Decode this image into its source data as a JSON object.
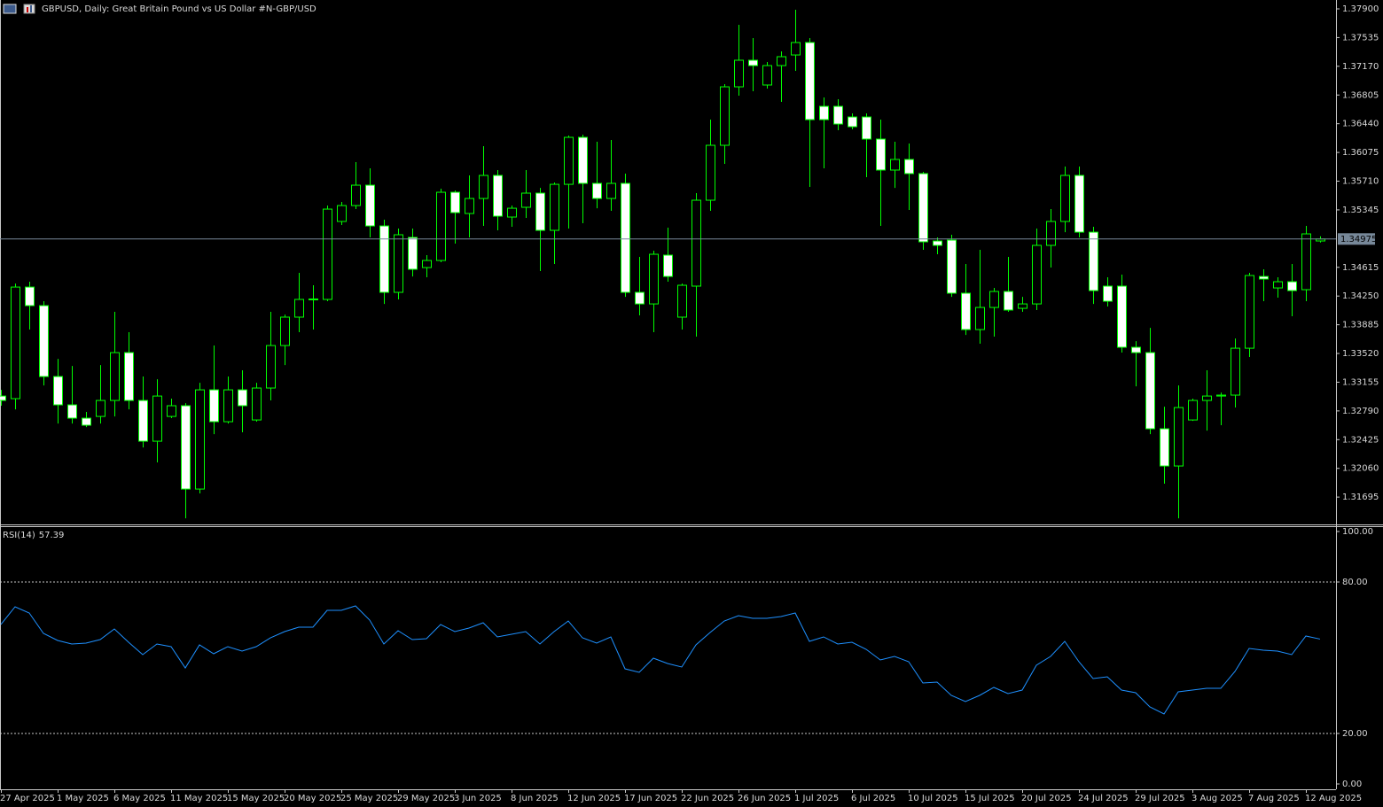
{
  "chart_data": [
    {
      "type": "candlestick",
      "title": "GBPUSD, Daily:  Great Britain Pound vs US Dollar #N-GBP/USD",
      "categories": [
        "27 Apr 2025",
        null,
        null,
        null,
        "1 May 2025",
        null,
        null,
        null,
        "6 May 2025",
        null,
        null,
        null,
        "11 May 2025",
        null,
        null,
        null,
        "15 May 2025",
        null,
        null,
        null,
        "20 May 2025",
        null,
        null,
        null,
        "25 May 2025",
        null,
        null,
        null,
        "29 May 2025",
        null,
        null,
        null,
        "3 Jun 2025",
        null,
        null,
        null,
        "8 Jun 2025",
        null,
        null,
        null,
        "12 Jun 2025",
        null,
        null,
        null,
        "17 Jun 2025",
        null,
        null,
        null,
        "22 Jun 2025",
        null,
        null,
        null,
        "26 Jun 2025",
        null,
        null,
        null,
        "1 Jul 2025",
        null,
        null,
        null,
        "6 Jul 2025",
        null,
        null,
        null,
        "10 Jul 2025",
        null,
        null,
        null,
        "15 Jul 2025",
        null,
        null,
        null,
        "20 Jul 2025",
        null,
        null,
        null,
        "24 Jul 2025",
        null,
        null,
        null,
        "29 Jul 2025",
        null,
        null,
        null,
        "3 Aug 2025",
        null,
        null,
        null,
        "7 Aug 2025",
        null,
        null,
        null,
        "12 Aug 2025",
        null
      ],
      "open": [
        1.32979,
        1.32946,
        1.34364,
        1.34128,
        1.33227,
        1.32867,
        1.32698,
        1.3272,
        1.32923,
        1.33531,
        1.32923,
        1.32405,
        1.3272,
        1.32856,
        1.31797,
        1.33058,
        1.32653,
        1.33058,
        1.32675,
        1.33081,
        1.33621,
        1.33982,
        1.34207,
        1.34207,
        1.35198,
        1.354,
        1.35659,
        1.35141,
        1.34297,
        1.34995,
        1.34612,
        1.34702,
        1.35569,
        1.35299,
        1.3549,
        1.35783,
        1.35254,
        1.35378,
        1.35558,
        1.35085,
        1.3567,
        1.36267,
        1.35682,
        1.3549,
        1.35682,
        1.34297,
        1.3415,
        1.3477,
        1.33982,
        1.34376,
        1.35468,
        1.36166,
        1.36909,
        1.37247,
        1.36932,
        1.37179,
        1.37314,
        1.37472,
        1.36661,
        1.36661,
        1.36526,
        1.36526,
        1.36245,
        1.35851,
        1.35986,
        1.35806,
        1.3495,
        1.34961,
        1.34286,
        1.33824,
        1.34105,
        1.34308,
        1.34094,
        1.3415,
        1.34894,
        1.35198,
        1.35783,
        1.35062,
        1.34376,
        1.34376,
        1.33599,
        1.33531,
        1.32563,
        1.3209,
        1.32675,
        1.32923,
        1.32979,
        1.32991,
        1.33587,
        1.34499,
        1.34353,
        1.34432,
        1.34331,
        1.3495
      ],
      "high": [
        1.33058,
        1.34409,
        1.34432,
        1.34184,
        1.33452,
        1.33362,
        1.32777,
        1.33373,
        1.34049,
        1.3379,
        1.33227,
        1.33193,
        1.32946,
        1.32889,
        1.33148,
        1.33621,
        1.33227,
        1.33306,
        1.33148,
        1.34049,
        1.34015,
        1.34545,
        1.34387,
        1.354,
        1.35445,
        1.35952,
        1.35873,
        1.3522,
        1.35108,
        1.35108,
        1.3477,
        1.35614,
        1.35592,
        1.35783,
        1.36155,
        1.35851,
        1.354,
        1.35851,
        1.35625,
        1.35693,
        1.3629,
        1.36301,
        1.36211,
        1.36234,
        1.35806,
        1.34747,
        1.34826,
        1.35119,
        1.34409,
        1.35558,
        1.36492,
        1.36943,
        1.37697,
        1.37528,
        1.37224,
        1.3736,
        1.37889,
        1.37528,
        1.36774,
        1.36751,
        1.36571,
        1.36571,
        1.36492,
        1.36211,
        1.36188,
        1.35828,
        1.34995,
        1.35029,
        1.34657,
        1.34837,
        1.34353,
        1.34747,
        1.3424,
        1.35108,
        1.35355,
        1.35896,
        1.35896,
        1.3513,
        1.34488,
        1.34522,
        1.33677,
        1.33846,
        1.32844,
        1.33114,
        1.32946,
        1.33306,
        1.33024,
        1.33711,
        1.34545,
        1.3459,
        1.34488,
        1.34657,
        1.35141,
        1.3501
      ],
      "low": [
        1.32856,
        1.3281,
        1.33824,
        1.33114,
        1.3263,
        1.3263,
        1.32585,
        1.3263,
        1.3272,
        1.3281,
        1.32326,
        1.32135,
        1.32698,
        1.31425,
        1.31741,
        1.32495,
        1.3263,
        1.32518,
        1.32653,
        1.32923,
        1.33373,
        1.3379,
        1.33824,
        1.34184,
        1.35153,
        1.35355,
        1.34995,
        1.3415,
        1.34207,
        1.34499,
        1.34488,
        1.3468,
        1.34916,
        1.34995,
        1.35141,
        1.35085,
        1.3513,
        1.35243,
        1.34567,
        1.34657,
        1.35108,
        1.35175,
        1.35366,
        1.35333,
        1.3424,
        1.34004,
        1.3379,
        1.34432,
        1.33824,
        1.33734,
        1.35333,
        1.35929,
        1.36797,
        1.36853,
        1.36887,
        1.36718,
        1.37112,
        1.35637,
        1.35873,
        1.36357,
        1.36369,
        1.35761,
        1.35141,
        1.35625,
        1.35344,
        1.34837,
        1.34781,
        1.3424,
        1.33756,
        1.33644,
        1.33734,
        1.34049,
        1.34049,
        1.34072,
        1.34612,
        1.35062,
        1.34995,
        1.3415,
        1.34117,
        1.33531,
        1.33103,
        1.32495,
        1.31865,
        1.31425,
        1.32664,
        1.3254,
        1.32608,
        1.32833,
        1.33475,
        1.34184,
        1.34229,
        1.33993,
        1.34184,
        1.3493
      ],
      "close": [
        1.32923,
        1.34364,
        1.34128,
        1.33227,
        1.32867,
        1.32698,
        1.32608,
        1.32923,
        1.33531,
        1.32923,
        1.32405,
        1.32979,
        1.32856,
        1.31797,
        1.33058,
        1.32653,
        1.33058,
        1.32856,
        1.33081,
        1.33621,
        1.33982,
        1.34207,
        1.34213,
        1.35355,
        1.354,
        1.35659,
        1.35141,
        1.34297,
        1.35029,
        1.3459,
        1.34702,
        1.35569,
        1.3531,
        1.3549,
        1.35783,
        1.35265,
        1.35366,
        1.35558,
        1.35085,
        1.3567,
        1.36267,
        1.35682,
        1.3549,
        1.35682,
        1.34297,
        1.3415,
        1.34781,
        1.34499,
        1.34387,
        1.35468,
        1.36166,
        1.36909,
        1.37247,
        1.37179,
        1.37179,
        1.37292,
        1.37472,
        1.36492,
        1.36492,
        1.36436,
        1.36402,
        1.36245,
        1.35851,
        1.35986,
        1.35806,
        1.34939,
        1.34894,
        1.34286,
        1.33824,
        1.34105,
        1.34308,
        1.34072,
        1.3415,
        1.34894,
        1.35198,
        1.35783,
        1.35062,
        1.34319,
        1.34184,
        1.33599,
        1.33531,
        1.32563,
        1.3209,
        1.32833,
        1.32923,
        1.32979,
        1.32991,
        1.33587,
        1.34511,
        1.34466,
        1.34432,
        1.34319,
        1.3504,
        1.34975
      ],
      "up_color": "#000000",
      "down_color": "#ffffff",
      "wick_color": "#00ff00",
      "last_price_color": "#778899",
      "ylim": [
        1.3137,
        1.3799
      ],
      "yticks": [
        {
          "value": 1.379,
          "label": "1.37900"
        },
        {
          "value": 1.37535,
          "label": "1.37535"
        },
        {
          "value": 1.3717,
          "label": "1.37170"
        },
        {
          "value": 1.36805,
          "label": "1.36805"
        },
        {
          "value": 1.3644,
          "label": "1.36440"
        },
        {
          "value": 1.36075,
          "label": "1.36075"
        },
        {
          "value": 1.3571,
          "label": "1.35710"
        },
        {
          "value": 1.35345,
          "label": "1.35345"
        },
        {
          "value": 1.34615,
          "label": "1.34615"
        },
        {
          "value": 1.3425,
          "label": "1.34250"
        },
        {
          "value": 1.33885,
          "label": "1.33885"
        },
        {
          "value": 1.3352,
          "label": "1.33520"
        },
        {
          "value": 1.33155,
          "label": "1.33155"
        },
        {
          "value": 1.3279,
          "label": "1.32790"
        },
        {
          "value": 1.32425,
          "label": "1.32425"
        },
        {
          "value": 1.3206,
          "label": "1.32060"
        },
        {
          "value": 1.31695,
          "label": "1.31695"
        }
      ]
    },
    {
      "type": "line",
      "title": "RSI(14)",
      "color": "#1e90ff",
      "values": [
        63.16,
        70.18,
        67.72,
        59.65,
        56.84,
        55.44,
        55.79,
        57.19,
        61.4,
        56.14,
        51.23,
        55.44,
        54.39,
        45.96,
        55.09,
        51.58,
        54.39,
        52.63,
        54.39,
        57.89,
        60.35,
        62.11,
        62.11,
        68.77,
        68.77,
        70.53,
        64.91,
        55.44,
        60.7,
        57.19,
        57.54,
        63.16,
        60.35,
        61.75,
        63.86,
        58.25,
        59.3,
        60.35,
        55.44,
        60.35,
        64.56,
        57.89,
        55.79,
        58.25,
        45.61,
        44.21,
        49.82,
        47.72,
        46.32,
        55.09,
        60.0,
        64.56,
        66.67,
        65.61,
        65.61,
        66.32,
        67.72,
        56.49,
        58.25,
        55.44,
        56.14,
        53.33,
        49.12,
        50.53,
        48.42,
        40.0,
        40.35,
        35.09,
        32.63,
        35.09,
        38.25,
        35.79,
        37.19,
        47.02,
        50.53,
        56.49,
        48.42,
        41.75,
        42.46,
        37.19,
        36.14,
        30.53,
        27.72,
        36.49,
        37.19,
        37.89,
        37.89,
        44.56,
        53.68,
        52.98,
        52.63,
        51.23,
        58.6,
        57.39
      ],
      "ylim": [
        0,
        100
      ],
      "yticks": [
        {
          "value": 100,
          "label": "100.00"
        },
        {
          "value": 80,
          "label": "80.00"
        },
        {
          "value": 20,
          "label": "20.00"
        },
        {
          "value": 0,
          "label": "0.00"
        }
      ],
      "levels": [
        80,
        20
      ]
    }
  ]
}
